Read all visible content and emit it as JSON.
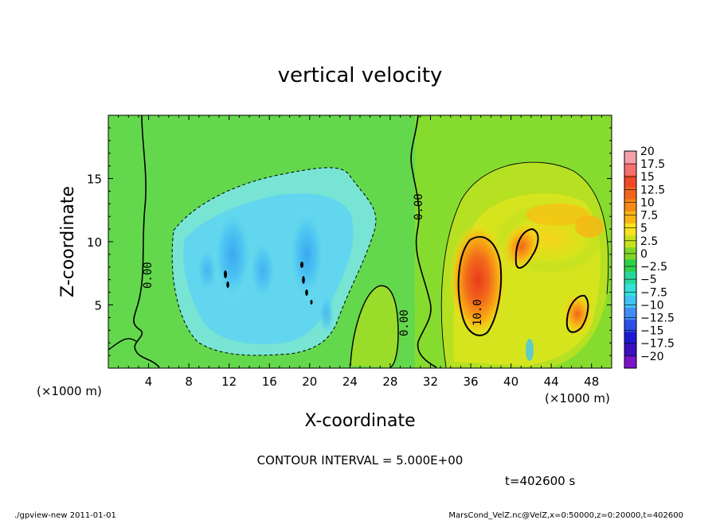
{
  "chart_data": {
    "type": "heatmap",
    "title": "vertical velocity",
    "xlabel": "X-coordinate",
    "ylabel": "Z-coordinate",
    "x_unit_left": "(×1000 m)",
    "x_unit_right": "(×1000 m)",
    "xlim": [
      0,
      50
    ],
    "ylim": [
      0,
      20
    ],
    "xticks": [
      4,
      8,
      12,
      16,
      20,
      24,
      28,
      32,
      36,
      40,
      44,
      48
    ],
    "yticks": [
      5,
      10,
      15
    ],
    "colorbar": {
      "labels": [
        "20",
        "17.5",
        "15",
        "12.5",
        "10",
        "7.5",
        "5",
        "2.5",
        "0",
        "−2.5",
        "−5",
        "−7.5",
        "−10",
        "−12.5",
        "−15",
        "−17.5",
        "−20"
      ],
      "colors": [
        "#f4a0a8",
        "#f47070",
        "#ee4a2a",
        "#f2651c",
        "#f58a14",
        "#f8b514",
        "#f7e21c",
        "#c7e21c",
        "#7fd62a",
        "#2fcf4a",
        "#27d89a",
        "#35e0d8",
        "#40c4f4",
        "#3f8cf4",
        "#2d4de8",
        "#1d1bd2",
        "#3c0fbf",
        "#7a14c6"
      ]
    },
    "contour_labels": [
      "0.00",
      "0.00",
      "0.00",
      "10.0"
    ],
    "contour_interval_text": "CONTOUR INTERVAL = 5.000E+00",
    "time_text": "t=402600 s",
    "grid": false,
    "legend": "right"
  },
  "footer": {
    "left": "./gpview-new  2011-01-01",
    "right": "MarsCond_VelZ.nc@VelZ,x=0:50000,z=0:20000,t=402600"
  }
}
